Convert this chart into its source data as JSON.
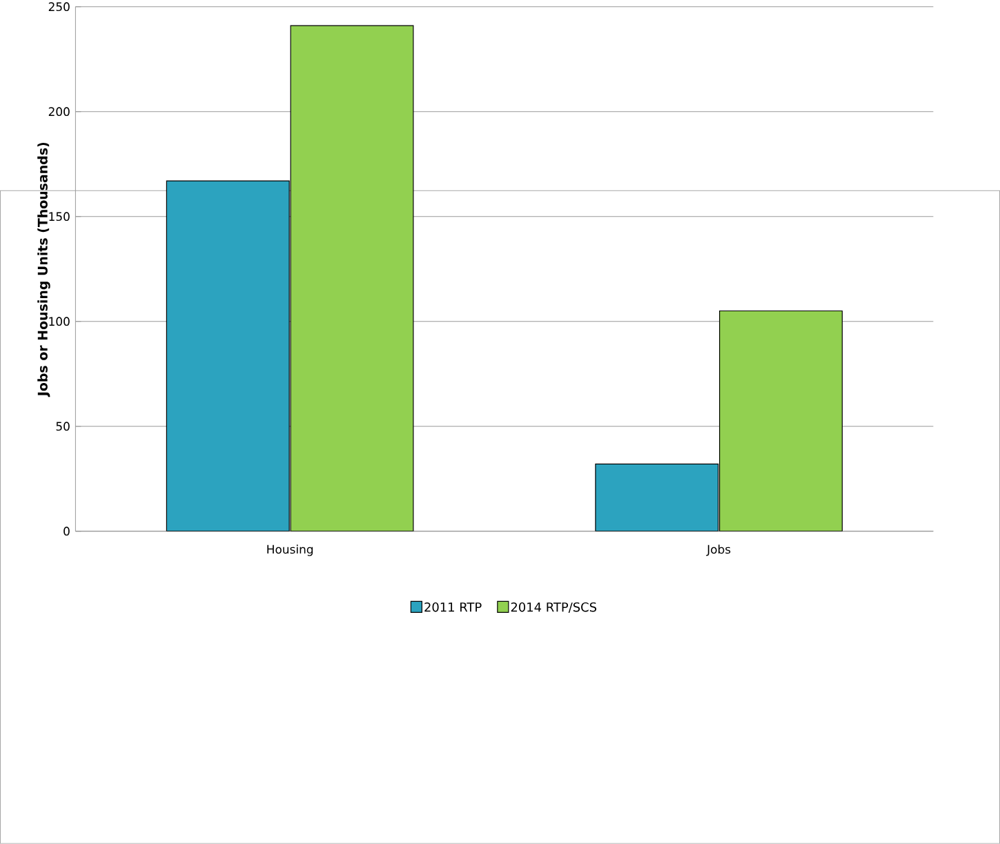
{
  "chart_data": {
    "type": "bar",
    "ylabel": "Jobs or Housing Units (Thousands)",
    "categories": [
      "Housing",
      "Jobs"
    ],
    "series": [
      {
        "name": "2011 RTP",
        "color": "#2ca3bf",
        "values": [
          167,
          32
        ]
      },
      {
        "name": "2014 RTP/SCS",
        "color": "#92d050",
        "values": [
          241,
          105
        ]
      }
    ],
    "ylim": [
      0,
      250
    ],
    "yticks": [
      0,
      50,
      100,
      150,
      200,
      250
    ],
    "grid": "y",
    "legend": "bottom"
  }
}
